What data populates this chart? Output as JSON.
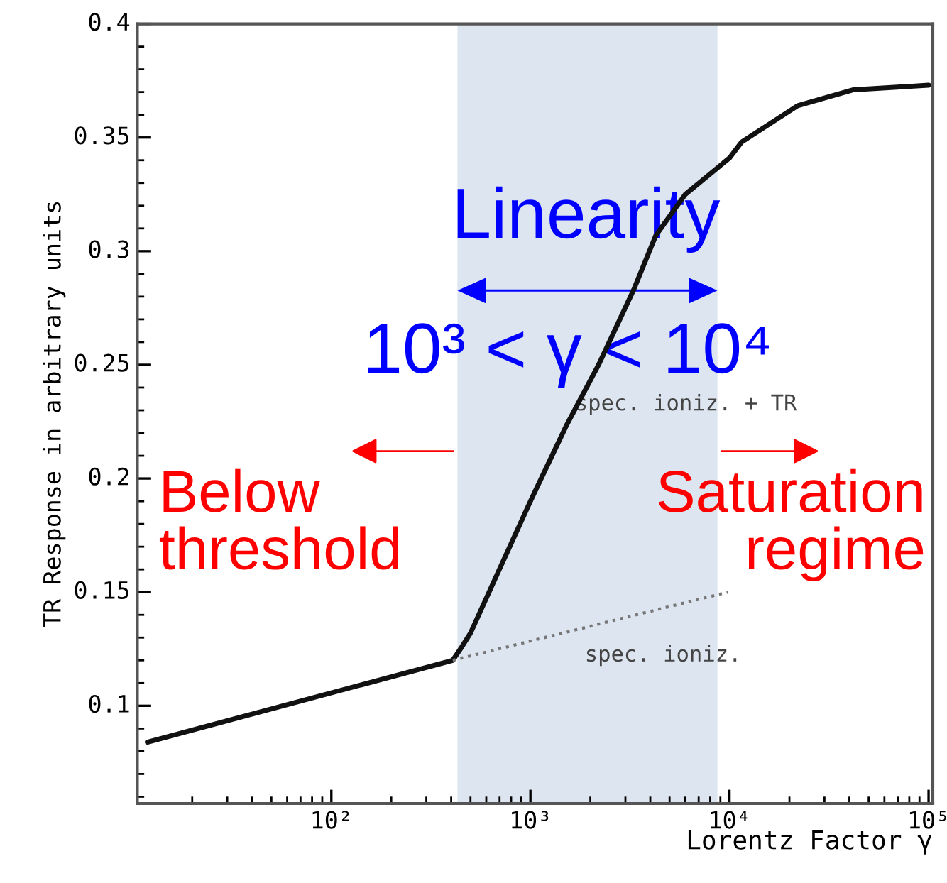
{
  "chart_data": {
    "type": "line",
    "xlabel": "Lorentz Factor γ",
    "ylabel": "TR Response in arbitrary units",
    "log": "x",
    "xlim": [
      10.6,
      105000
    ],
    "ylim": [
      0.057,
      0.4
    ],
    "xticks": [
      {
        "value": 100,
        "label": "10²"
      },
      {
        "value": 1000,
        "label": "10³"
      },
      {
        "value": 10000,
        "label": "10⁴"
      },
      {
        "value": 100000,
        "label": "10⁵"
      }
    ],
    "yticks": [
      {
        "value": 0.1,
        "label": "0.1"
      },
      {
        "value": 0.15,
        "label": "0.15"
      },
      {
        "value": 0.2,
        "label": "0.2"
      },
      {
        "value": 0.25,
        "label": "0.25"
      },
      {
        "value": 0.3,
        "label": "0.3"
      },
      {
        "value": 0.35,
        "label": "0.35"
      },
      {
        "value": 0.4,
        "label": "0.4"
      }
    ],
    "grid": false,
    "legend": false,
    "series": [
      {
        "color": "#111111",
        "line_style": "solid",
        "x": [
          11.9,
          407,
          445,
          500,
          690,
          1000,
          1510,
          2200,
          3300,
          4270,
          6000,
          10000,
          11500,
          22000,
          42000,
          100000
        ],
        "values": [
          0.084,
          0.12,
          0.125,
          0.132,
          0.159,
          0.19,
          0.223,
          0.25,
          0.283,
          0.307,
          0.325,
          0.341,
          0.348,
          0.364,
          0.371,
          0.373
        ]
      },
      {
        "color": "#777777",
        "line_style": "dotted",
        "x": [
          407,
          9800
        ],
        "values": [
          0.12,
          0.15
        ]
      }
    ],
    "bands": [
      {
        "axis": "x",
        "from": 430,
        "to": 8700,
        "color": "#dde5f0"
      }
    ],
    "annotations": [
      "Linearity",
      "10³ < γ < 10⁴",
      "Below\nthreshold",
      "Saturation\nregime",
      "spec. ioniz. + TR",
      "spec. ioniz."
    ]
  }
}
